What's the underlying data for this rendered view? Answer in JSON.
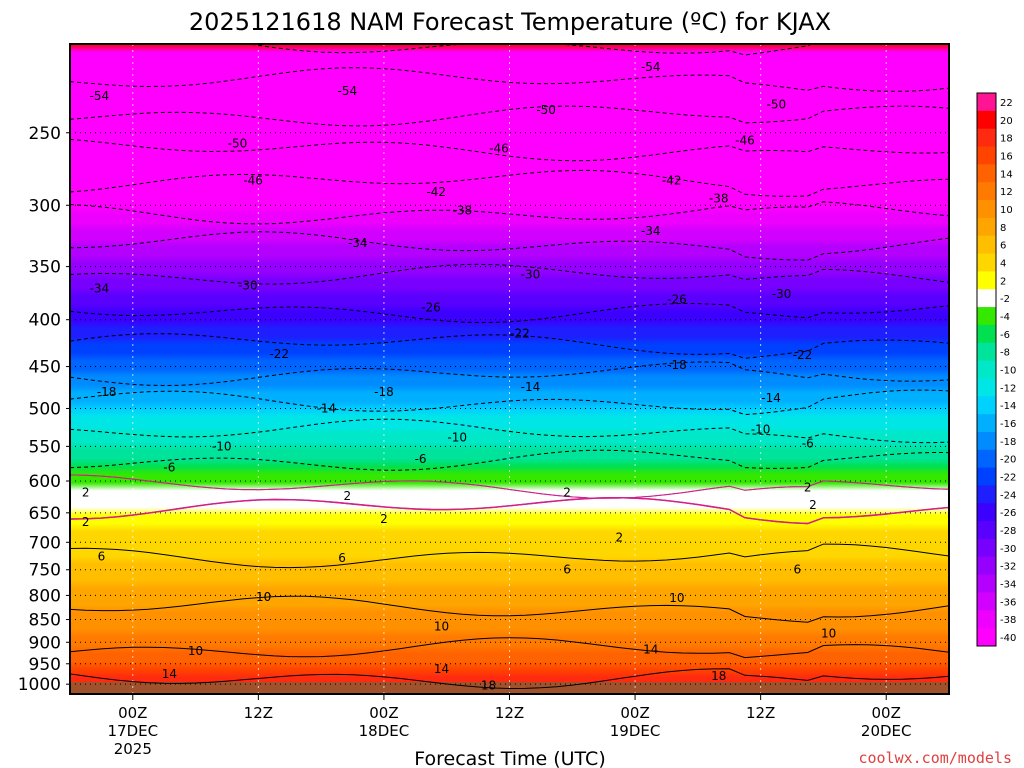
{
  "chart_data": {
    "type": "heatmap",
    "title": "2025121618 NAM Forecast Temperature (ºC) for KJAX",
    "xlabel": "Forecast Time (UTC)",
    "ylabel": "",
    "credit": "coolwx.com/models",
    "x_ticks": [
      {
        "hours": 6,
        "lines": [
          "00Z",
          "17DEC",
          "2025"
        ]
      },
      {
        "hours": 18,
        "lines": [
          "12Z"
        ]
      },
      {
        "hours": 30,
        "lines": [
          "00Z",
          "18DEC"
        ]
      },
      {
        "hours": 42,
        "lines": [
          "12Z"
        ]
      },
      {
        "hours": 54,
        "lines": [
          "00Z",
          "19DEC"
        ]
      },
      {
        "hours": 66,
        "lines": [
          "12Z"
        ]
      },
      {
        "hours": 78,
        "lines": [
          "00Z",
          "20DEC"
        ]
      }
    ],
    "x_range_hours": [
      0,
      84
    ],
    "y_pressure_ticks": [
      250,
      300,
      350,
      400,
      450,
      500,
      550,
      600,
      650,
      700,
      750,
      800,
      850,
      900,
      950,
      1000
    ],
    "y_range_hpa": [
      200,
      1025
    ],
    "colorbar": {
      "labels": [
        22,
        20,
        18,
        16,
        14,
        12,
        10,
        8,
        6,
        4,
        2,
        -2,
        -4,
        -6,
        -8,
        -10,
        -12,
        -14,
        -16,
        -18,
        -20,
        -22,
        -24,
        -26,
        -28,
        -30,
        -32,
        -34,
        -36,
        -38,
        -40
      ],
      "colors": [
        "#ff1493",
        "#ff0000",
        "#ff2a10",
        "#ff4400",
        "#ff6200",
        "#ff7a00",
        "#ff9000",
        "#ffa500",
        "#ffbe00",
        "#ffd700",
        "#ffff00",
        "#ffffff",
        "#34e800",
        "#00e050",
        "#00e39a",
        "#00e8c8",
        "#00e6e6",
        "#00d2ff",
        "#00b0ff",
        "#008cff",
        "#0064ff",
        "#0040ff",
        "#1e1eff",
        "#3c00ff",
        "#5a00ff",
        "#7800ff",
        "#9600ff",
        "#b400ff",
        "#d200ff",
        "#ee00ff",
        "#ff00ff"
      ]
    },
    "temperature_profile": [
      {
        "p": 200,
        "t": -58
      },
      {
        "p": 250,
        "t": -48
      },
      {
        "p": 300,
        "t": -39
      },
      {
        "p": 350,
        "t": -31
      },
      {
        "p": 400,
        "t": -25
      },
      {
        "p": 450,
        "t": -19
      },
      {
        "p": 500,
        "t": -13
      },
      {
        "p": 550,
        "t": -8
      },
      {
        "p": 600,
        "t": -3
      },
      {
        "p": 650,
        "t": 3
      },
      {
        "p": 700,
        "t": 5
      },
      {
        "p": 750,
        "t": 7
      },
      {
        "p": 800,
        "t": 9
      },
      {
        "p": 850,
        "t": 11
      },
      {
        "p": 900,
        "t": 13
      },
      {
        "p": 950,
        "t": 16
      },
      {
        "p": 1000,
        "t": 19
      },
      {
        "p": 1025,
        "t": 20
      }
    ],
    "contour_labels": [
      {
        "text": "-54",
        "hours": 2.8,
        "p": 228
      },
      {
        "text": "-54",
        "hours": 26.5,
        "p": 225
      },
      {
        "text": "-54",
        "hours": 55.5,
        "p": 212
      },
      {
        "text": "-50",
        "hours": 16,
        "p": 257
      },
      {
        "text": "-50",
        "hours": 45.5,
        "p": 236
      },
      {
        "text": "-50",
        "hours": 67.5,
        "p": 233
      },
      {
        "text": "-46",
        "hours": 17.5,
        "p": 282
      },
      {
        "text": "-46",
        "hours": 41,
        "p": 260
      },
      {
        "text": "-46",
        "hours": 64.5,
        "p": 255
      },
      {
        "text": "-42",
        "hours": 35,
        "p": 290
      },
      {
        "text": "-42",
        "hours": 57.5,
        "p": 282
      },
      {
        "text": "-38",
        "hours": 37.5,
        "p": 304
      },
      {
        "text": "-38",
        "hours": 62,
        "p": 295
      },
      {
        "text": "-34",
        "hours": 27.5,
        "p": 330
      },
      {
        "text": "-34",
        "hours": 55.5,
        "p": 320
      },
      {
        "text": "-34",
        "hours": 2.8,
        "p": 370
      },
      {
        "text": "-30",
        "hours": 17,
        "p": 367
      },
      {
        "text": "-30",
        "hours": 44,
        "p": 357
      },
      {
        "text": "-30",
        "hours": 68,
        "p": 375
      },
      {
        "text": "-26",
        "hours": 34.5,
        "p": 388
      },
      {
        "text": "-26",
        "hours": 58,
        "p": 380
      },
      {
        "text": "-22",
        "hours": 20,
        "p": 436
      },
      {
        "text": "-22",
        "hours": 43,
        "p": 414
      },
      {
        "text": "-22",
        "hours": 70,
        "p": 437
      },
      {
        "text": "-18",
        "hours": 3.5,
        "p": 480
      },
      {
        "text": "-18",
        "hours": 30,
        "p": 480
      },
      {
        "text": "-18",
        "hours": 58,
        "p": 448
      },
      {
        "text": "-14",
        "hours": 24.5,
        "p": 500
      },
      {
        "text": "-14",
        "hours": 44,
        "p": 474
      },
      {
        "text": "-14",
        "hours": 67,
        "p": 487
      },
      {
        "text": "-10",
        "hours": 14.5,
        "p": 550
      },
      {
        "text": "-10",
        "hours": 37,
        "p": 538
      },
      {
        "text": "-10",
        "hours": 66,
        "p": 527
      },
      {
        "text": "-6",
        "hours": 9.5,
        "p": 580
      },
      {
        "text": "-6",
        "hours": 33.5,
        "p": 568
      },
      {
        "text": "-6",
        "hours": 70.5,
        "p": 546
      },
      {
        "text": "2",
        "hours": 1.5,
        "p": 618
      },
      {
        "text": "2",
        "hours": 26.5,
        "p": 623
      },
      {
        "text": "2",
        "hours": 47.5,
        "p": 618
      },
      {
        "text": "2",
        "hours": 70.5,
        "p": 610
      },
      {
        "text": "2",
        "hours": 1.5,
        "p": 665
      },
      {
        "text": "2",
        "hours": 30,
        "p": 660
      },
      {
        "text": "2",
        "hours": 52.5,
        "p": 692
      },
      {
        "text": "2",
        "hours": 71,
        "p": 637
      },
      {
        "text": "6",
        "hours": 3,
        "p": 725
      },
      {
        "text": "6",
        "hours": 26,
        "p": 728
      },
      {
        "text": "6",
        "hours": 47.5,
        "p": 750
      },
      {
        "text": "6",
        "hours": 69.5,
        "p": 750
      },
      {
        "text": "10",
        "hours": 18.5,
        "p": 803
      },
      {
        "text": "10",
        "hours": 35.5,
        "p": 865
      },
      {
        "text": "10",
        "hours": 58,
        "p": 805
      },
      {
        "text": "10",
        "hours": 72.5,
        "p": 880
      },
      {
        "text": "10",
        "hours": 12,
        "p": 920
      },
      {
        "text": "14",
        "hours": 9.5,
        "p": 975
      },
      {
        "text": "14",
        "hours": 35.5,
        "p": 962
      },
      {
        "text": "14",
        "hours": 55.5,
        "p": 917
      },
      {
        "text": "18",
        "hours": 40,
        "p": 1003
      },
      {
        "text": "18",
        "hours": 62,
        "p": 980
      }
    ]
  }
}
